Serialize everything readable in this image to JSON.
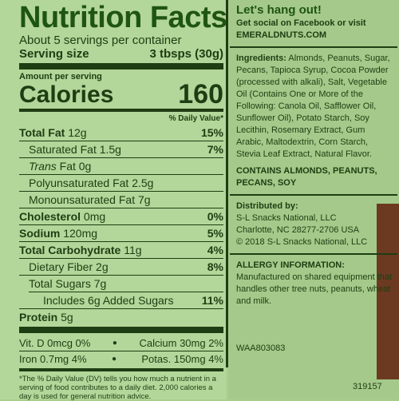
{
  "nutrition": {
    "title": "Nutrition Facts",
    "servings": "About 5 servings per container",
    "serving_size_label": "Serving size",
    "serving_size_value": "3 tbsps (30g)",
    "amount_per_serving": "Amount per serving",
    "calories_label": "Calories",
    "calories_value": "160",
    "dv_header": "% Daily Value*",
    "rows": [
      {
        "label": "Total Fat",
        "amount": "12g",
        "pct": "15%"
      },
      {
        "label": "Saturated Fat",
        "amount": "1.5g",
        "pct": "7%"
      },
      {
        "label": "Trans",
        "amount": "Fat 0g",
        "pct": ""
      },
      {
        "label": "Polyunsaturated Fat",
        "amount": "2.5g",
        "pct": ""
      },
      {
        "label": "Monounsaturated Fat",
        "amount": "7g",
        "pct": ""
      },
      {
        "label": "Cholesterol",
        "amount": "0mg",
        "pct": "0%"
      },
      {
        "label": "Sodium",
        "amount": "120mg",
        "pct": "5%"
      },
      {
        "label": "Total Carbohydrate",
        "amount": "11g",
        "pct": "4%"
      },
      {
        "label": "Dietary Fiber",
        "amount": "2g",
        "pct": "8%"
      },
      {
        "label": "Total Sugars",
        "amount": "7g",
        "pct": ""
      },
      {
        "label": "Includes 6g Added Sugars",
        "amount": "",
        "pct": "11%"
      },
      {
        "label": "Protein",
        "amount": "5g",
        "pct": ""
      }
    ],
    "vitamins": [
      {
        "left": "Vit. D 0mcg 0%",
        "right": "Calcium 30mg 2%"
      },
      {
        "left": "Iron 0.7mg 4%",
        "right": "Potas. 150mg 4%"
      }
    ],
    "footnote": "*The % Daily Value (DV) tells you how much a nutrient in a serving of food contributes to a daily diet. 2,000 calories a day is used for general nutrition advice."
  },
  "right_panel": {
    "headline": "Let's hang out!",
    "social_line": "Get social on Facebook or visit",
    "website": "EMERALDNUTS.COM",
    "ingredients_label": "Ingredients:",
    "ingredients_text": "Almonds, Peanuts, Sugar, Pecans, Tapioca Syrup, Cocoa Powder (processed with alkali), Salt, Vegetable Oil (Contains One or More of the Following: Canola Oil, Safflower Oil, Sunflower Oil), Potato Starch, Soy Lecithin, Rosemary Extract, Gum Arabic, Maltodextrin, Corn Starch, Stevia Leaf Extract, Natural Flavor.",
    "contains": "CONTAINS ALMONDS, PEANUTS, PECANS, SOY",
    "distributed_label": "Distributed by:",
    "distributor_name": "S-L Snacks National, LLC",
    "distributor_address": "Charlotte, NC 28277-2706 USA",
    "copyright": "© 2018 S-L Snacks National, LLC",
    "allergy_label": "ALLERGY INFORMATION:",
    "allergy_text": "Manufactured on shared equipment that handles other tree nuts, peanuts, wheat and milk.",
    "code_1": "WAA803083",
    "code_2": "319157"
  },
  "colors": {
    "label_green": "#b3d69a",
    "ink": "#1f3d12",
    "title_green": "#1f5512",
    "brown": "#6b3a21"
  }
}
